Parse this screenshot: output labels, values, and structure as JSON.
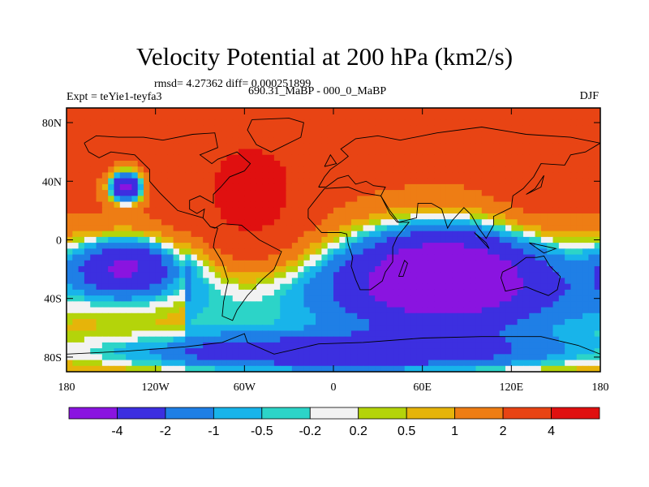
{
  "chart_data": {
    "type": "heatmap",
    "title": "Velocity Potential at 200 hPa (km2/s)",
    "stats": "rmsd= 4.27362 diff= 0.000251899",
    "experiment": "Expt = teYie1-teyfa3",
    "comparison": "690.31_MaBP - 000_0_MaBP",
    "season": "DJF",
    "x_ticks": [
      "180",
      "120W",
      "60W",
      "0",
      "60E",
      "120E",
      "180"
    ],
    "x_tick_values": [
      -180,
      -120,
      -60,
      0,
      60,
      120,
      180
    ],
    "y_ticks": [
      "80N",
      "40N",
      "0",
      "40S",
      "80S"
    ],
    "y_tick_values": [
      80,
      40,
      0,
      -40,
      -80
    ],
    "xlim": [
      -180,
      180
    ],
    "ylim": [
      -90,
      90
    ],
    "colorbar": {
      "levels": [
        "-4",
        "-2",
        "-1",
        "-0.5",
        "-0.2",
        "0.2",
        "0.5",
        "1",
        "2",
        "4"
      ],
      "colors": [
        "#8a14e0",
        "#3c2fe0",
        "#1f7fe6",
        "#18b4ea",
        "#2cd4c8",
        "#f2f2f2",
        "#b4d40a",
        "#e6b40a",
        "#ee7d14",
        "#e84414",
        "#e01010"
      ],
      "placement": "bottom"
    },
    "centers": [
      {
        "lon": -55,
        "lat": 20,
        "value": 4.8,
        "sx": 28,
        "sy": 38
      },
      {
        "lon": -120,
        "lat": 60,
        "value": 2.6,
        "sx": 80,
        "sy": 30
      },
      {
        "lon": 135,
        "lat": 25,
        "value": 3.0,
        "sx": 22,
        "sy": 18
      },
      {
        "lon": 25,
        "lat": 55,
        "value": 2.4,
        "sx": 60,
        "sy": 25
      },
      {
        "lon": -140,
        "lat": 36,
        "value": -4.8,
        "sx": 8,
        "sy": 8
      },
      {
        "lon": 75,
        "lat": -22,
        "value": -4.8,
        "sx": 45,
        "sy": 24
      },
      {
        "lon": -140,
        "lat": -18,
        "value": -3.2,
        "sx": 26,
        "sy": 14
      },
      {
        "lon": 20,
        "lat": 2,
        "value": 2.2,
        "sx": 4,
        "sy": 4
      },
      {
        "lon": 0,
        "lat": -78,
        "value": -2.2,
        "sx": 120,
        "sy": 10
      }
    ],
    "base_value": 2.2,
    "coastlines": [
      [
        [
          -168,
          66
        ],
        [
          -160,
          71
        ],
        [
          -145,
          70
        ],
        [
          -128,
          70
        ],
        [
          -115,
          68
        ],
        [
          -95,
          72
        ],
        [
          -80,
          73
        ],
        [
          -78,
          63
        ],
        [
          -90,
          58
        ],
        [
          -82,
          52
        ],
        [
          -78,
          55
        ],
        [
          -65,
          60
        ],
        [
          -56,
          52
        ],
        [
          -60,
          47
        ],
        [
          -70,
          43
        ],
        [
          -76,
          36
        ],
        [
          -81,
          31
        ],
        [
          -81,
          25
        ],
        [
          -90,
          30
        ],
        [
          -97,
          27
        ],
        [
          -97,
          21
        ],
        [
          -92,
          18
        ],
        [
          -87,
          21
        ],
        [
          -88,
          15
        ],
        [
          -83,
          9
        ],
        [
          -78,
          8
        ],
        [
          -80,
          1
        ],
        [
          -81,
          -5
        ],
        [
          -75,
          -15
        ],
        [
          -71,
          -28
        ],
        [
          -74,
          -42
        ],
        [
          -75,
          -52
        ],
        [
          -68,
          -55
        ],
        [
          -65,
          -48
        ],
        [
          -58,
          -38
        ],
        [
          -48,
          -27
        ],
        [
          -40,
          -20
        ],
        [
          -35,
          -8
        ],
        [
          -50,
          0
        ],
        [
          -62,
          10
        ],
        [
          -75,
          11
        ],
        [
          -80,
          8
        ],
        [
          -83,
          9
        ],
        [
          -88,
          15
        ],
        [
          -105,
          20
        ],
        [
          -110,
          25
        ],
        [
          -117,
          32
        ],
        [
          -124,
          40
        ],
        [
          -124,
          48
        ],
        [
          -134,
          58
        ],
        [
          -150,
          60
        ],
        [
          -158,
          56
        ],
        [
          -165,
          60
        ],
        [
          -168,
          66
        ]
      ],
      [
        [
          -55,
          82
        ],
        [
          -30,
          83
        ],
        [
          -20,
          80
        ],
        [
          -22,
          70
        ],
        [
          -42,
          60
        ],
        [
          -52,
          65
        ],
        [
          -58,
          75
        ],
        [
          -55,
          82
        ]
      ],
      [
        [
          -10,
          36
        ],
        [
          -6,
          43
        ],
        [
          -2,
          48
        ],
        [
          5,
          53
        ],
        [
          10,
          57
        ],
        [
          5,
          62
        ],
        [
          15,
          69
        ],
        [
          30,
          71
        ],
        [
          45,
          68
        ],
        [
          70,
          73
        ],
        [
          100,
          77
        ],
        [
          130,
          72
        ],
        [
          160,
          70
        ],
        [
          180,
          66
        ],
        [
          170,
          60
        ],
        [
          160,
          58
        ],
        [
          156,
          51
        ],
        [
          140,
          52
        ],
        [
          135,
          43
        ],
        [
          128,
          35
        ],
        [
          121,
          30
        ],
        [
          120,
          22
        ],
        [
          108,
          16
        ],
        [
          108,
          10
        ],
        [
          103,
          1
        ],
        [
          98,
          8
        ],
        [
          93,
          17
        ],
        [
          88,
          22
        ],
        [
          80,
          13
        ],
        [
          77,
          8
        ],
        [
          73,
          21
        ],
        [
          66,
          25
        ],
        [
          57,
          25
        ],
        [
          56,
          15
        ],
        [
          44,
          12
        ],
        [
          38,
          20
        ],
        [
          32,
          30
        ],
        [
          35,
          36
        ],
        [
          27,
          37
        ],
        [
          22,
          40
        ],
        [
          15,
          38
        ],
        [
          10,
          44
        ],
        [
          3,
          42
        ],
        [
          -5,
          36
        ],
        [
          -10,
          36
        ]
      ],
      [
        [
          -17,
          21
        ],
        [
          -17,
          15
        ],
        [
          -8,
          5
        ],
        [
          5,
          5
        ],
        [
          9,
          4
        ],
        [
          10,
          -3
        ],
        [
          13,
          -12
        ],
        [
          12,
          -18
        ],
        [
          15,
          -27
        ],
        [
          18,
          -34
        ],
        [
          25,
          -34
        ],
        [
          33,
          -28
        ],
        [
          35,
          -22
        ],
        [
          40,
          -15
        ],
        [
          40,
          -5
        ],
        [
          43,
          2
        ],
        [
          51,
          12
        ],
        [
          43,
          12
        ],
        [
          38,
          18
        ],
        [
          32,
          30
        ],
        [
          20,
          32
        ],
        [
          10,
          36
        ],
        [
          -6,
          35
        ],
        [
          -10,
          30
        ],
        [
          -17,
          21
        ]
      ],
      [
        [
          114,
          -22
        ],
        [
          122,
          -18
        ],
        [
          130,
          -12
        ],
        [
          137,
          -12
        ],
        [
          142,
          -11
        ],
        [
          146,
          -18
        ],
        [
          153,
          -25
        ],
        [
          151,
          -34
        ],
        [
          145,
          -38
        ],
        [
          137,
          -35
        ],
        [
          130,
          -32
        ],
        [
          116,
          -35
        ],
        [
          113,
          -26
        ],
        [
          114,
          -22
        ]
      ],
      [
        [
          -180,
          -78
        ],
        [
          -140,
          -76
        ],
        [
          -100,
          -73
        ],
        [
          -75,
          -70
        ],
        [
          -60,
          -64
        ],
        [
          -58,
          -70
        ],
        [
          -40,
          -78
        ],
        [
          -10,
          -71
        ],
        [
          20,
          -70
        ],
        [
          60,
          -67
        ],
        [
          100,
          -66
        ],
        [
          140,
          -66
        ],
        [
          165,
          -72
        ],
        [
          180,
          -78
        ]
      ],
      [
        [
          44,
          -25
        ],
        [
          48,
          -14
        ],
        [
          50,
          -16
        ],
        [
          47,
          -25
        ],
        [
          44,
          -25
        ]
      ],
      [
        [
          -6,
          50
        ],
        [
          -2,
          58
        ],
        [
          2,
          52
        ],
        [
          -6,
          50
        ]
      ],
      [
        [
          130,
          31
        ],
        [
          140,
          36
        ],
        [
          142,
          44
        ],
        [
          136,
          35
        ],
        [
          130,
          31
        ]
      ],
      [
        [
          95,
          5
        ],
        [
          105,
          -6
        ],
        [
          103,
          -2
        ],
        [
          95,
          5
        ]
      ],
      [
        [
          132,
          -2
        ],
        [
          150,
          -6
        ],
        [
          142,
          -9
        ],
        [
          132,
          -2
        ]
      ]
    ]
  }
}
